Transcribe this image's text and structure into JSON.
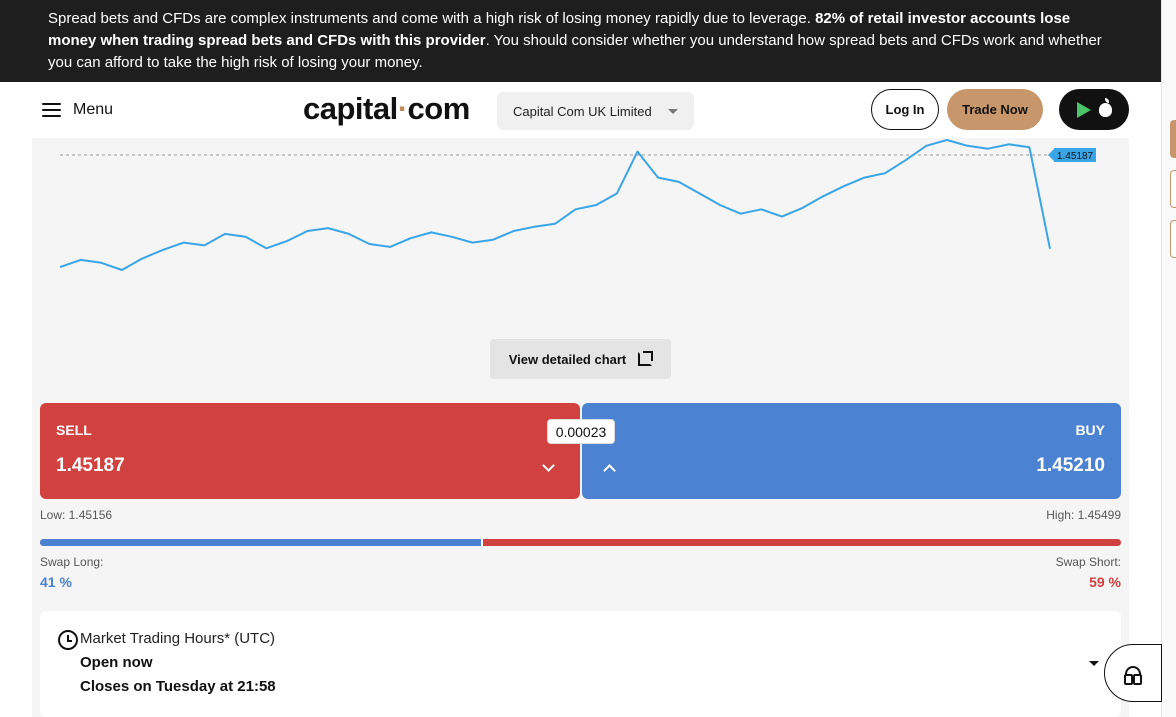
{
  "risk_banner": {
    "text_before": "Spread bets and CFDs are complex instruments and come with a high risk of losing money rapidly due to leverage. ",
    "text_bold": "82% of retail investor accounts lose money when trading spread bets and CFDs with this provider",
    "text_after": ". You should consider whether you understand how spread bets and CFDs work and whether you can afford to take the high risk of losing your money."
  },
  "header": {
    "menu_label": "Menu",
    "logo_left": "capital",
    "logo_dot": "·",
    "logo_right": "com",
    "entity_selected": "Capital Com UK Limited",
    "login_label": "Log In",
    "trade_label": "Trade Now"
  },
  "icons": {
    "menu": "hamburger-icon",
    "entity_dropdown": "caret-down-icon",
    "google_play": "google-play-icon",
    "apple": "apple-icon",
    "expand": "expand-icon",
    "sell_chevron": "chevron-down-icon",
    "buy_chevron": "chevron-up-icon",
    "clock": "clock-icon",
    "hours_dropdown": "caret-down-icon",
    "support": "headset-icon"
  },
  "chart": {
    "current_price_label": "1.45187",
    "view_detailed_label": "View detailed chart",
    "line_color": "#3aa5e6",
    "price_series": [
      1.4506,
      1.4511,
      1.4509,
      1.4504,
      1.4512,
      1.4518,
      1.4523,
      1.4521,
      1.4529,
      1.4527,
      1.4519,
      1.4524,
      1.4531,
      1.4533,
      1.4529,
      1.4522,
      1.452,
      1.4526,
      1.453,
      1.4527,
      1.4523,
      1.4525,
      1.4531,
      1.4534,
      1.4536,
      1.4546,
      1.4549,
      1.4557,
      1.4586,
      1.4568,
      1.4565,
      1.4557,
      1.4549,
      1.4543,
      1.4546,
      1.4541,
      1.4547,
      1.4555,
      1.4562,
      1.4568,
      1.4571,
      1.458,
      1.459,
      1.4594,
      1.459,
      1.4588,
      1.4591,
      1.4589,
      1.45187
    ]
  },
  "trade": {
    "sell_label": "SELL",
    "sell_price": "1.45187",
    "buy_label": "BUY",
    "buy_price": "1.45210",
    "spread": "0.00023",
    "low_label": "Low: 1.45156",
    "high_label": "High: 1.45499",
    "swap_long_label": "Swap Long:",
    "swap_long_value": "41 %",
    "swap_short_label": "Swap Short:",
    "swap_short_value": "59 %",
    "long_percent": 41,
    "sell_color": "#d0413f",
    "buy_color": "#4b82d1"
  },
  "market_hours": {
    "title": "Market Trading Hours* (UTC)",
    "status": "Open now",
    "closes": "Closes on Tuesday at 21:58"
  },
  "colors": {
    "brand_accent": "#c7966b",
    "banner_bg": "#1e1e1e"
  }
}
